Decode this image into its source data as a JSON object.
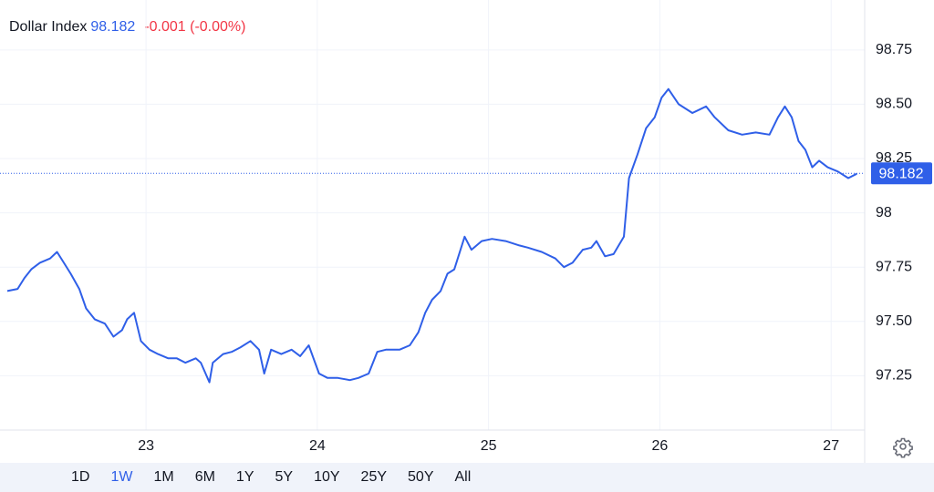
{
  "chart_data": {
    "type": "line",
    "title": "Dollar Index",
    "last_value": 98.182,
    "change": "-0.001 (-0.00%)",
    "x": [
      22.19,
      22.25,
      22.29,
      22.33,
      22.38,
      22.44,
      22.48,
      22.52,
      22.56,
      22.61,
      22.65,
      22.7,
      22.76,
      22.81,
      22.86,
      22.89,
      22.93,
      22.97,
      23.02,
      23.07,
      23.13,
      23.18,
      23.23,
      23.29,
      23.32,
      23.37,
      23.39,
      23.45,
      23.5,
      23.55,
      23.61,
      23.66,
      23.69,
      23.73,
      23.79,
      23.85,
      23.9,
      23.95,
      24.01,
      24.06,
      24.12,
      24.19,
      24.24,
      24.3,
      24.35,
      24.4,
      24.48,
      24.54,
      24.59,
      24.63,
      24.67,
      24.72,
      24.76,
      24.8,
      24.86,
      24.9,
      24.96,
      25.02,
      25.1,
      25.18,
      25.23,
      25.31,
      25.39,
      25.44,
      25.49,
      25.55,
      25.6,
      25.63,
      25.68,
      25.73,
      25.79,
      25.82,
      25.87,
      25.92,
      25.97,
      26.01,
      26.05,
      26.11,
      26.19,
      26.27,
      26.32,
      26.4,
      26.48,
      26.56,
      26.64,
      26.69,
      26.73,
      26.77,
      26.81,
      26.85,
      26.89,
      26.93,
      26.98,
      27.04,
      27.1,
      27.15
    ],
    "series": [
      {
        "name": "Dollar Index",
        "color": "#2f5fe8",
        "values": [
          97.64,
          97.65,
          97.7,
          97.74,
          97.77,
          97.79,
          97.82,
          97.77,
          97.72,
          97.65,
          97.56,
          97.51,
          97.49,
          97.43,
          97.46,
          97.51,
          97.54,
          97.41,
          97.37,
          97.35,
          97.33,
          97.33,
          97.31,
          97.33,
          97.31,
          97.22,
          97.31,
          97.35,
          97.36,
          97.38,
          97.41,
          97.37,
          97.26,
          97.37,
          97.35,
          97.37,
          97.34,
          97.39,
          97.26,
          97.24,
          97.24,
          97.23,
          97.24,
          97.26,
          97.36,
          97.37,
          97.37,
          97.39,
          97.45,
          97.54,
          97.6,
          97.64,
          97.72,
          97.74,
          97.89,
          97.83,
          97.87,
          97.88,
          97.87,
          97.85,
          97.84,
          97.82,
          97.79,
          97.75,
          97.77,
          97.83,
          97.84,
          97.87,
          97.8,
          97.81,
          97.89,
          98.16,
          98.27,
          98.39,
          98.44,
          98.53,
          98.57,
          98.5,
          98.46,
          98.49,
          98.44,
          98.38,
          98.36,
          98.37,
          98.36,
          98.44,
          98.49,
          98.44,
          98.33,
          98.29,
          98.21,
          98.24,
          98.21,
          98.19,
          98.16,
          98.18
        ]
      }
    ],
    "xlim": [
      22.19,
      27.18
    ],
    "xticks": [
      23,
      24,
      25,
      26,
      27
    ],
    "ylim": [
      97.0,
      98.98
    ],
    "yticks": [
      97.25,
      {
        "value": 97.5,
        "label": "97.50"
      },
      97.75,
      98,
      98.25,
      {
        "value": 98.5,
        "label": "98.50"
      },
      98.75
    ],
    "grid": true,
    "range_buttons": [
      "1D",
      "1W",
      "1M",
      "6M",
      "1Y",
      "5Y",
      "10Y",
      "25Y",
      "50Y",
      "All"
    ],
    "selected_range_index": 1
  }
}
